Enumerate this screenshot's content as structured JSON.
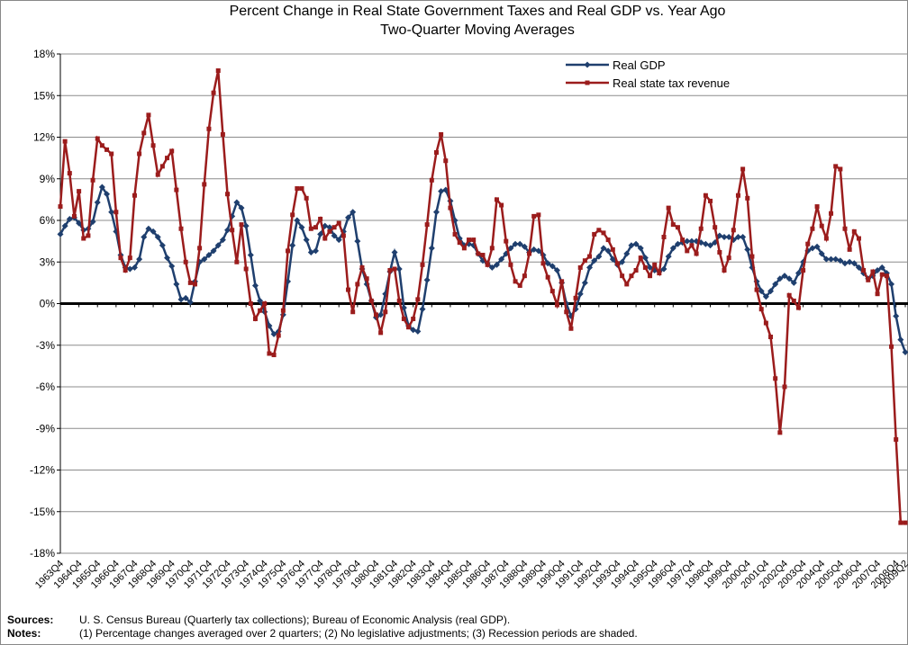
{
  "chart_data": {
    "type": "line",
    "title": "Percent Change in Real State Government Taxes and Real GDP vs. Year Ago",
    "subtitle": "Two-Quarter Moving Averages",
    "categories": [
      "1963Q4",
      null,
      null,
      null,
      "1964Q4",
      null,
      null,
      null,
      "1965Q4",
      null,
      null,
      null,
      "1966Q4",
      null,
      null,
      null,
      "1967Q4",
      null,
      null,
      null,
      "1968Q4",
      null,
      null,
      null,
      "1969Q4",
      null,
      null,
      null,
      "1970Q4",
      null,
      null,
      null,
      "1971Q4",
      null,
      null,
      null,
      "1972Q4",
      null,
      null,
      null,
      "1973Q4",
      null,
      null,
      null,
      "1974Q4",
      null,
      null,
      null,
      "1975Q4",
      null,
      null,
      null,
      "1976Q4",
      null,
      null,
      null,
      "1977Q4",
      null,
      null,
      null,
      "1978Q4",
      null,
      null,
      null,
      "1979Q4",
      null,
      null,
      null,
      "1980Q4",
      null,
      null,
      null,
      "1981Q4",
      null,
      null,
      null,
      "1982Q4",
      null,
      null,
      null,
      "1983Q4",
      null,
      null,
      null,
      "1984Q4",
      null,
      null,
      null,
      "1985Q4",
      null,
      null,
      null,
      "1986Q4",
      null,
      null,
      null,
      "1987Q4",
      null,
      null,
      null,
      "1988Q4",
      null,
      null,
      null,
      "1989Q4",
      null,
      null,
      null,
      "1990Q4",
      null,
      null,
      null,
      "1991Q4",
      null,
      null,
      null,
      "1992Q4",
      null,
      null,
      null,
      "1993Q4",
      null,
      null,
      null,
      "1994Q4",
      null,
      null,
      null,
      "1995Q4",
      null,
      null,
      null,
      "1996Q4",
      null,
      null,
      null,
      "1997Q4",
      null,
      null,
      null,
      "1998Q4",
      null,
      null,
      null,
      "1999Q4",
      null,
      null,
      null,
      "2000Q4",
      null,
      null,
      null,
      "2001Q4",
      null,
      null,
      null,
      "2002Q4",
      null,
      null,
      null,
      "2003Q4",
      null,
      null,
      null,
      "2004Q4",
      null,
      null,
      null,
      "2005Q4",
      null,
      null,
      null,
      "2006Q4",
      null,
      null,
      null,
      "2007Q4",
      null,
      null,
      null,
      "2008Q4",
      null,
      "2009Q2"
    ],
    "series": [
      {
        "name": "Real GDP",
        "color": "#1f3f6e",
        "marker": "diamond",
        "values": [
          5.0,
          5.6,
          6.1,
          6.2,
          5.8,
          5.3,
          5.4,
          5.9,
          7.3,
          8.4,
          7.9,
          6.6,
          5.2,
          3.5,
          2.6,
          2.5,
          2.6,
          3.2,
          4.8,
          5.4,
          5.2,
          4.8,
          4.2,
          3.3,
          2.7,
          1.4,
          0.3,
          0.4,
          0.1,
          1.6,
          3.0,
          3.2,
          3.5,
          3.8,
          4.2,
          4.6,
          5.3,
          6.3,
          7.3,
          6.9,
          5.6,
          3.5,
          1.3,
          0.2,
          -0.6,
          -1.6,
          -2.2,
          -2.0,
          -0.8,
          1.6,
          4.2,
          6.0,
          5.5,
          4.6,
          3.7,
          3.8,
          5.0,
          5.6,
          5.5,
          4.9,
          4.6,
          5.2,
          6.2,
          6.6,
          4.5,
          2.5,
          1.4,
          0.2,
          -1.0,
          -0.8,
          0.7,
          2.3,
          3.7,
          2.5,
          -0.3,
          -1.6,
          -1.9,
          -2.0,
          -0.4,
          1.7,
          4.0,
          6.6,
          8.1,
          8.2,
          7.4,
          6.0,
          4.7,
          4.2,
          4.3,
          4.2,
          3.6,
          3.1,
          2.9,
          2.6,
          2.8,
          3.2,
          3.6,
          4.0,
          4.3,
          4.3,
          4.1,
          3.7,
          3.9,
          3.8,
          3.5,
          2.9,
          2.7,
          2.4,
          1.5,
          0.0,
          -0.9,
          -0.4,
          0.7,
          1.5,
          2.6,
          3.1,
          3.4,
          4.0,
          3.8,
          3.2,
          2.8,
          3.0,
          3.6,
          4.2,
          4.3,
          4.0,
          3.3,
          2.6,
          2.4,
          2.3,
          2.5,
          3.4,
          4.0,
          4.3,
          4.4,
          4.5,
          4.5,
          4.5,
          4.4,
          4.3,
          4.2,
          4.4,
          4.9,
          4.8,
          4.8,
          4.6,
          4.8,
          4.8,
          3.9,
          2.6,
          1.6,
          0.9,
          0.5,
          0.9,
          1.4,
          1.8,
          2.0,
          1.8,
          1.5,
          2.2,
          3.0,
          3.8,
          4.0,
          4.1,
          3.6,
          3.2,
          3.2,
          3.2,
          3.1,
          2.9,
          3.0,
          2.9,
          2.6,
          2.2,
          1.8,
          2.0,
          2.4,
          2.6,
          2.2,
          1.4,
          -0.9,
          -2.6,
          -3.5
        ]
      },
      {
        "name": "Real state tax revenue",
        "color": "#9b1c1c",
        "marker": "square",
        "values": [
          7.0,
          11.7,
          9.4,
          6.3,
          8.1,
          4.7,
          4.9,
          8.9,
          11.9,
          11.4,
          11.1,
          10.8,
          6.6,
          3.3,
          2.4,
          3.3,
          7.8,
          10.8,
          12.3,
          13.6,
          11.4,
          9.3,
          9.9,
          10.5,
          11.0,
          8.2,
          5.4,
          3.0,
          1.5,
          1.4,
          4.0,
          8.6,
          12.6,
          15.2,
          16.8,
          12.2,
          7.9,
          5.3,
          3.0,
          5.7,
          2.5,
          0.0,
          -1.1,
          -0.5,
          0.0,
          -3.6,
          -3.7,
          -2.3,
          -0.5,
          3.8,
          6.4,
          8.3,
          8.3,
          7.6,
          5.4,
          5.5,
          6.1,
          4.7,
          5.2,
          5.5,
          5.8,
          4.9,
          1.0,
          -0.6,
          1.4,
          2.6,
          1.8,
          0.2,
          -0.8,
          -2.1,
          -0.6,
          2.4,
          2.5,
          0.2,
          -1.1,
          -1.7,
          -1.1,
          0.3,
          2.8,
          5.7,
          8.9,
          10.9,
          12.2,
          10.3,
          6.9,
          5.0,
          4.4,
          4.0,
          4.6,
          4.6,
          3.6,
          3.5,
          2.8,
          4.0,
          7.5,
          7.1,
          4.5,
          2.8,
          1.6,
          1.3,
          2.0,
          3.6,
          6.3,
          6.4,
          2.9,
          1.9,
          0.9,
          -0.1,
          1.6,
          -0.6,
          -1.8,
          0.4,
          2.6,
          3.1,
          3.4,
          5.0,
          5.3,
          5.1,
          4.6,
          3.9,
          2.9,
          2.0,
          1.4,
          2.0,
          2.4,
          3.3,
          2.6,
          2.0,
          2.8,
          2.2,
          4.8,
          6.9,
          5.7,
          5.5,
          4.6,
          3.8,
          4.2,
          3.6,
          5.4,
          7.8,
          7.4,
          5.5,
          3.7,
          2.4,
          3.3,
          5.3,
          7.8,
          9.7,
          7.6,
          3.4,
          1.0,
          -0.4,
          -1.4,
          -2.4,
          -5.4,
          -9.3,
          -6.0,
          0.6,
          0.2,
          -0.3,
          2.4,
          4.3,
          5.4,
          7.0,
          5.6,
          4.7,
          6.5,
          9.9,
          9.7,
          5.4,
          3.9,
          5.2,
          4.7,
          2.4,
          1.7,
          2.3,
          0.7,
          2.1,
          2.0,
          -3.1,
          -9.8,
          -15.8,
          -15.8
        ]
      }
    ],
    "ylim": [
      -18,
      18
    ],
    "yticks": [
      {
        "value": -18,
        "label": "-18%"
      },
      {
        "value": -15,
        "label": "-15%"
      },
      {
        "value": -12,
        "label": "-12%"
      },
      {
        "value": -9,
        "label": "-9%"
      },
      {
        "value": -6,
        "label": "-6%"
      },
      {
        "value": -3,
        "label": "-3%"
      },
      {
        "value": 0,
        "label": "0%"
      },
      {
        "value": 3,
        "label": "3%"
      },
      {
        "value": 6,
        "label": "6%"
      },
      {
        "value": 9,
        "label": "9%"
      },
      {
        "value": 12,
        "label": "12%"
      },
      {
        "value": 15,
        "label": "15%"
      },
      {
        "value": 18,
        "label": "18%"
      }
    ],
    "grid": true,
    "legend": "top-right",
    "sources_label": "Sources:",
    "sources_text": "U. S. Census Bureau (Quarterly tax collections); Bureau of Economic Analysis (real GDP).",
    "notes_label": "Notes:",
    "notes_text": "(1) Percentage changes averaged over 2 quarters; (2) No legislative adjustments; (3) Recession periods are shaded."
  }
}
